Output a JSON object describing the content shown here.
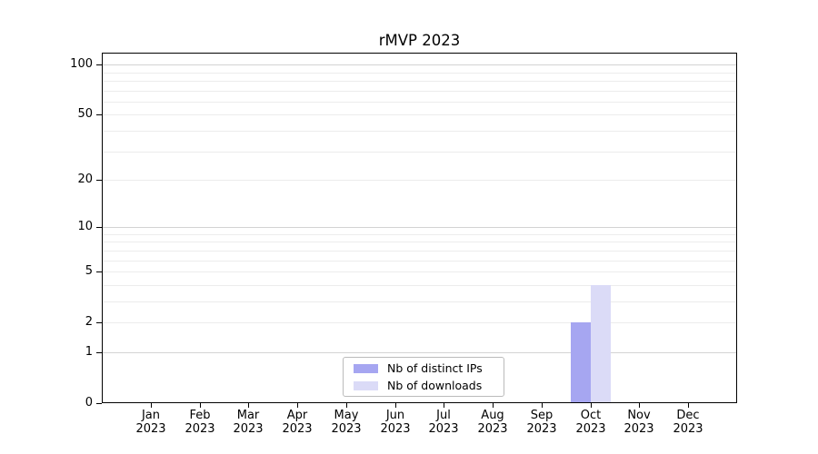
{
  "figure": {
    "background": "#ffffff"
  },
  "chart_data": {
    "type": "bar",
    "title": "rMVP 2023",
    "x": {
      "categories": [
        "Jan",
        "Feb",
        "Mar",
        "Apr",
        "May",
        "Jun",
        "Jul",
        "Aug",
        "Sep",
        "Oct",
        "Nov",
        "Dec"
      ],
      "year": "2023"
    },
    "series": [
      {
        "name": "Nb of distinct IPs",
        "color": "#a6a6f1",
        "values": [
          0,
          0,
          0,
          0,
          0,
          0,
          0,
          0,
          0,
          2,
          0,
          0
        ]
      },
      {
        "name": "Nb of downloads",
        "color": "#dbdbf7",
        "values": [
          0,
          0,
          0,
          0,
          0,
          0,
          0,
          0,
          0,
          4,
          0,
          0
        ]
      }
    ],
    "y": {
      "scale": "log1p",
      "lim": [
        0,
        118
      ],
      "tick_values": [
        100,
        50,
        20,
        10,
        5,
        2,
        1,
        0
      ],
      "minor_grid_values": [
        2,
        3,
        4,
        5,
        6,
        7,
        8,
        9,
        20,
        30,
        40,
        50,
        60,
        70,
        80,
        90
      ],
      "major_grid_values": [
        1,
        10,
        100
      ]
    },
    "legend_position": "lower center",
    "grid": true
  },
  "colors": {
    "major_grid": "#d3d3d3",
    "minor_grid": "#ececec",
    "axis": "#000000",
    "legend_border": "#bbbbbb"
  }
}
